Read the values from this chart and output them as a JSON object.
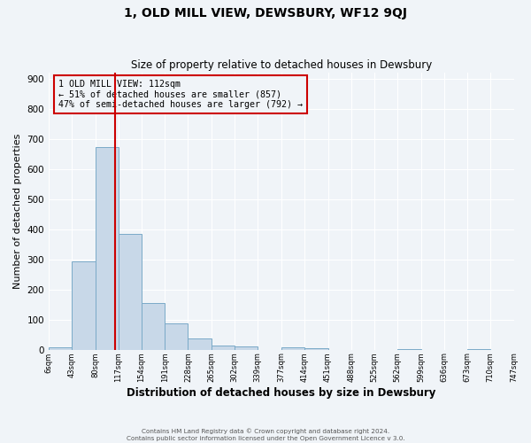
{
  "title": "1, OLD MILL VIEW, DEWSBURY, WF12 9QJ",
  "subtitle": "Size of property relative to detached houses in Dewsbury",
  "xlabel": "Distribution of detached houses by size in Dewsbury",
  "ylabel": "Number of detached properties",
  "bin_edges": [
    6,
    43,
    80,
    117,
    154,
    191,
    228,
    265,
    302,
    339,
    377,
    414,
    451,
    488,
    525,
    562,
    599,
    636,
    673,
    710,
    747
  ],
  "bin_labels": [
    "6sqm",
    "43sqm",
    "80sqm",
    "117sqm",
    "154sqm",
    "191sqm",
    "228sqm",
    "265sqm",
    "302sqm",
    "339sqm",
    "377sqm",
    "414sqm",
    "451sqm",
    "488sqm",
    "525sqm",
    "562sqm",
    "599sqm",
    "636sqm",
    "673sqm",
    "710sqm",
    "747sqm"
  ],
  "bar_heights": [
    8,
    293,
    672,
    385,
    155,
    88,
    38,
    15,
    12,
    0,
    8,
    5,
    0,
    0,
    0,
    3,
    0,
    0,
    3,
    0
  ],
  "bar_color": "#c8d8e8",
  "bar_edge_color": "#7aaac8",
  "vline_x": 112,
  "vline_color": "#cc0000",
  "ylim": [
    0,
    920
  ],
  "yticks": [
    0,
    100,
    200,
    300,
    400,
    500,
    600,
    700,
    800,
    900
  ],
  "annotation_title": "1 OLD MILL VIEW: 112sqm",
  "annotation_line1": "← 51% of detached houses are smaller (857)",
  "annotation_line2": "47% of semi-detached houses are larger (792) →",
  "annotation_box_color": "#cc0000",
  "footer_line1": "Contains HM Land Registry data © Crown copyright and database right 2024.",
  "footer_line2": "Contains public sector information licensed under the Open Government Licence v 3.0.",
  "bg_color": "#f0f4f8",
  "grid_color": "#ffffff"
}
